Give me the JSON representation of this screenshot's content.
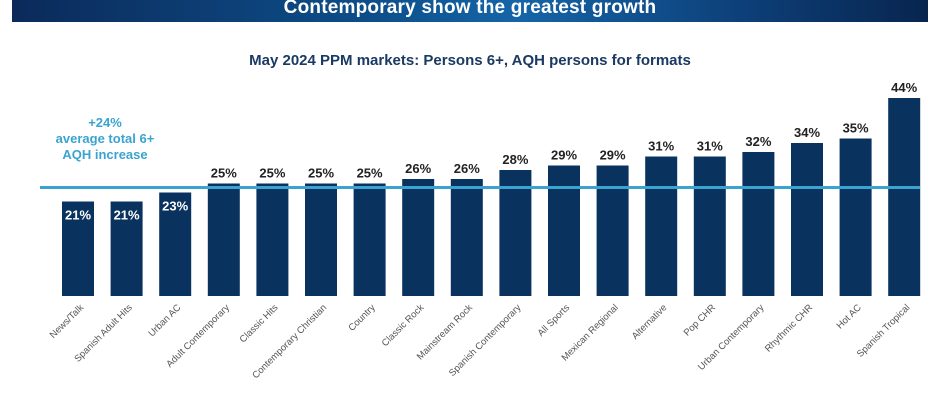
{
  "header": {
    "banner_title": "Contemporary show the greatest growth"
  },
  "chart_data": {
    "type": "bar",
    "title": "May 2024 PPM markets: Persons 6+, AQH persons for formats",
    "xlabel": "",
    "ylabel": "",
    "unit": "%",
    "ylim": [
      0,
      45
    ],
    "grid": false,
    "categories": [
      "News/Talk",
      "Spanish Adult Hits",
      "Urban AC",
      "Adult Contemporary",
      "Classic Hits",
      "Contemporary Christian",
      "Country",
      "Classic Rock",
      "Mainstream Rock",
      "Spanish Contemporary",
      "All Sports",
      "Mexican Regional",
      "Alternative",
      "Pop CHR",
      "Urban Contemporary",
      "Rhythmic CHR",
      "Hot AC",
      "Spanish Tropical"
    ],
    "values": [
      21,
      21,
      23,
      25,
      25,
      25,
      25,
      26,
      26,
      28,
      29,
      29,
      31,
      31,
      32,
      34,
      35,
      44
    ],
    "data_labels": [
      "21%",
      "21%",
      "23%",
      "25%",
      "25%",
      "25%",
      "25%",
      "26%",
      "26%",
      "28%",
      "29%",
      "29%",
      "31%",
      "31%",
      "32%",
      "34%",
      "35%",
      "44%"
    ],
    "reference_line": {
      "value": 24,
      "label_lines": [
        "+24%",
        "average total 6+",
        "AQH increase"
      ]
    },
    "colors": {
      "bar": "#0a325f",
      "reference_line": "#3aa3d0",
      "label_inside": "#ffffff",
      "label_outside": "#222222",
      "category_label": "#555555"
    }
  }
}
